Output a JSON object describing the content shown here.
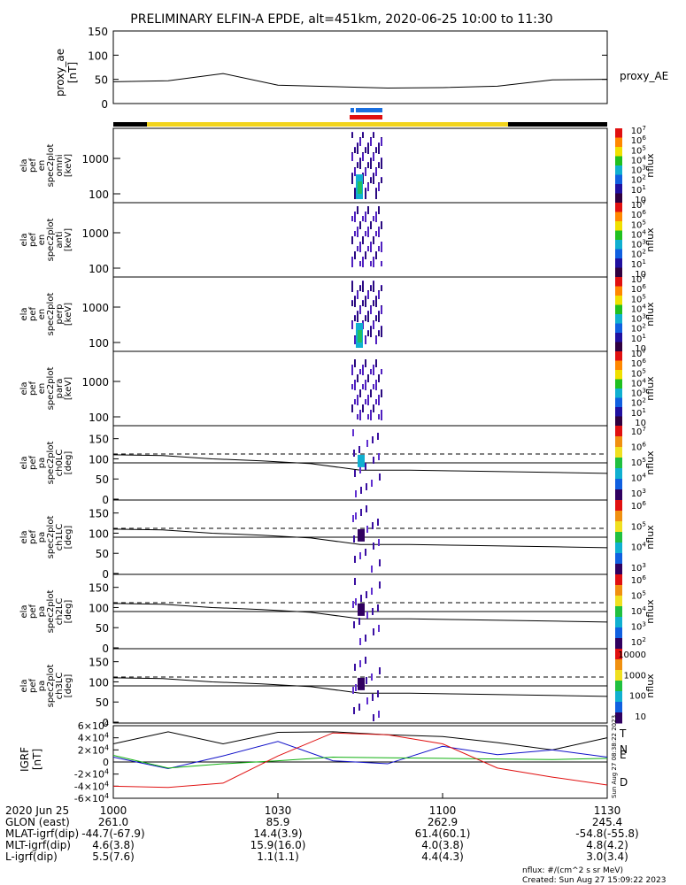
{
  "title": "PRELIMINARY ELFIN-A EPDE, alt=451km, 2020-06-25 10:00 to 11:30",
  "colors": {
    "sun_bar": "#f2d41c",
    "shadow_bar": "#000000",
    "ibo_bar": "#1a6fe0",
    "obo_bar": "#e01010",
    "T": "#000000",
    "N": "#1010c8",
    "E": "#10b010",
    "D": "#e01010"
  },
  "proxy_ae": {
    "ylabel": [
      "proxy_ae",
      "[nT]"
    ],
    "legend": "proxy_AE",
    "ylim": [
      0,
      150
    ],
    "ticks": [
      "0",
      "50",
      "100",
      "150"
    ]
  },
  "spectra": [
    {
      "ylabel": [
        "ela",
        "pef",
        "en",
        "spec2plot",
        "omni",
        "[keV]"
      ],
      "cbticks": [
        "10",
        "10^1",
        "10^2",
        "10^3",
        "10^4",
        "10^5",
        "10^6",
        "10^7"
      ],
      "cblabel": "nflux"
    },
    {
      "ylabel": [
        "ela",
        "pef",
        "en",
        "spec2plot",
        "anti",
        "[keV]"
      ],
      "cbticks": [
        "10",
        "10^1",
        "10^2",
        "10^3",
        "10^4",
        "10^5",
        "10^6",
        "10^7"
      ],
      "cblabel": "nflux"
    },
    {
      "ylabel": [
        "ela",
        "pef",
        "en",
        "spec2plot",
        "perp",
        "[keV]"
      ],
      "cbticks": [
        "10",
        "10^1",
        "10^2",
        "10^3",
        "10^4",
        "10^5",
        "10^6",
        "10^7"
      ],
      "cblabel": "nflux"
    },
    {
      "ylabel": [
        "ela",
        "pef",
        "en",
        "spec2plot",
        "para",
        "[keV]"
      ],
      "cbticks": [
        "10",
        "10^1",
        "10^2",
        "10^3",
        "10^4",
        "10^5",
        "10^6",
        "10^7"
      ],
      "cblabel": "nflux"
    }
  ],
  "spectra_yticks": [
    "100",
    "1000"
  ],
  "pas": [
    {
      "ylabel": [
        "ela",
        "pef",
        "pa",
        "spec2plot",
        "ch0LC",
        "[deg]"
      ],
      "cbticks": [
        "10^3",
        "10^4",
        "10^5",
        "10^6",
        "10^7"
      ],
      "cblabel": "nflux"
    },
    {
      "ylabel": [
        "ela",
        "pef",
        "pa",
        "spec2plot",
        "ch1LC",
        "[deg]"
      ],
      "cbticks": [
        "10^3",
        "10^4",
        "10^5",
        "10^6"
      ],
      "cblabel": "nflux"
    },
    {
      "ylabel": [
        "ela",
        "pef",
        "pa",
        "spec2plot",
        "ch2LC",
        "[deg]"
      ],
      "cbticks": [
        "10^2",
        "10^3",
        "10^4",
        "10^5",
        "10^6"
      ],
      "cblabel": "nflux"
    },
    {
      "ylabel": [
        "ela",
        "pef",
        "pa",
        "spec2plot",
        "ch3LC",
        "[deg]"
      ],
      "cbticks": [
        "10",
        "100",
        "1000",
        "10000"
      ],
      "cblabel": "nflux"
    }
  ],
  "pa_yticks": [
    "0",
    "50",
    "100",
    "150"
  ],
  "igrf": {
    "ylabel": [
      "IGRF",
      "[nT]"
    ],
    "ticks": [
      "-6×10^4",
      "-4×10^4",
      "-2×10^4",
      "0",
      "2×10^4",
      "4×10^4",
      "6×10^4"
    ],
    "legend": [
      "T",
      "N",
      "E",
      "D"
    ],
    "stamp": "Sun Aug 27 08:38:22 2023"
  },
  "bottom": {
    "row_labels": [
      "2020 Jun 25",
      "GLON (east)",
      "MLAT-igrf(dip)",
      "MLT-igrf(dip)",
      "L-igrf(dip)"
    ],
    "columns": [
      {
        "time": "1000",
        "vals": [
          "261.0",
          "-44.7(-67.9)",
          "4.6(3.8)",
          "5.5(7.6)"
        ]
      },
      {
        "time": "1030",
        "vals": [
          "85.9",
          "14.4(3.9)",
          "15.9(16.0)",
          "1.1(1.1)"
        ]
      },
      {
        "time": "1100",
        "vals": [
          "262.9",
          "61.4(60.1)",
          "4.0(3.8)",
          "4.4(4.3)"
        ]
      },
      {
        "time": "1130",
        "vals": [
          "245.4",
          "-54.8(-55.8)",
          "4.8(4.2)",
          "3.0(3.4)"
        ]
      }
    ],
    "nflux_note": "nflux: #/(cm^2 s sr MeV)",
    "created": "Created: Sun Aug 27 15:09:22 2023"
  },
  "chart_data": {
    "type": "line",
    "title": "PRELIMINARY ELFIN-A EPDE, alt=451km, 2020-06-25 10:00 to 11:30",
    "x": [
      0,
      10,
      20,
      30,
      40,
      50,
      60,
      70,
      80,
      90
    ],
    "x_ticks": [
      "1000",
      "1030",
      "1100",
      "1130"
    ],
    "proxy_ae": [
      45,
      47,
      62,
      38,
      35,
      32,
      33,
      36,
      49,
      50
    ],
    "igrf": {
      "T": [
        30000,
        50000,
        30000,
        49000,
        50000,
        45000,
        42000,
        32000,
        20000,
        40000
      ],
      "N": [
        8000,
        -11000,
        10000,
        34000,
        2000,
        -3000,
        26000,
        12000,
        20000,
        8000
      ],
      "E": [
        11000,
        -10000,
        -3000,
        2000,
        8000,
        7000,
        6000,
        5000,
        4000,
        6000
      ],
      "D": [
        -40000,
        -42000,
        -35000,
        10000,
        48000,
        45000,
        30000,
        -10000,
        -25000,
        -38000
      ]
    },
    "lc_angle_deg": [
      110,
      108,
      100,
      95,
      88,
      72,
      72,
      70,
      68,
      66,
      64
    ],
    "blc_angle_deg": 112,
    "spin_angle_deg": 90
  }
}
